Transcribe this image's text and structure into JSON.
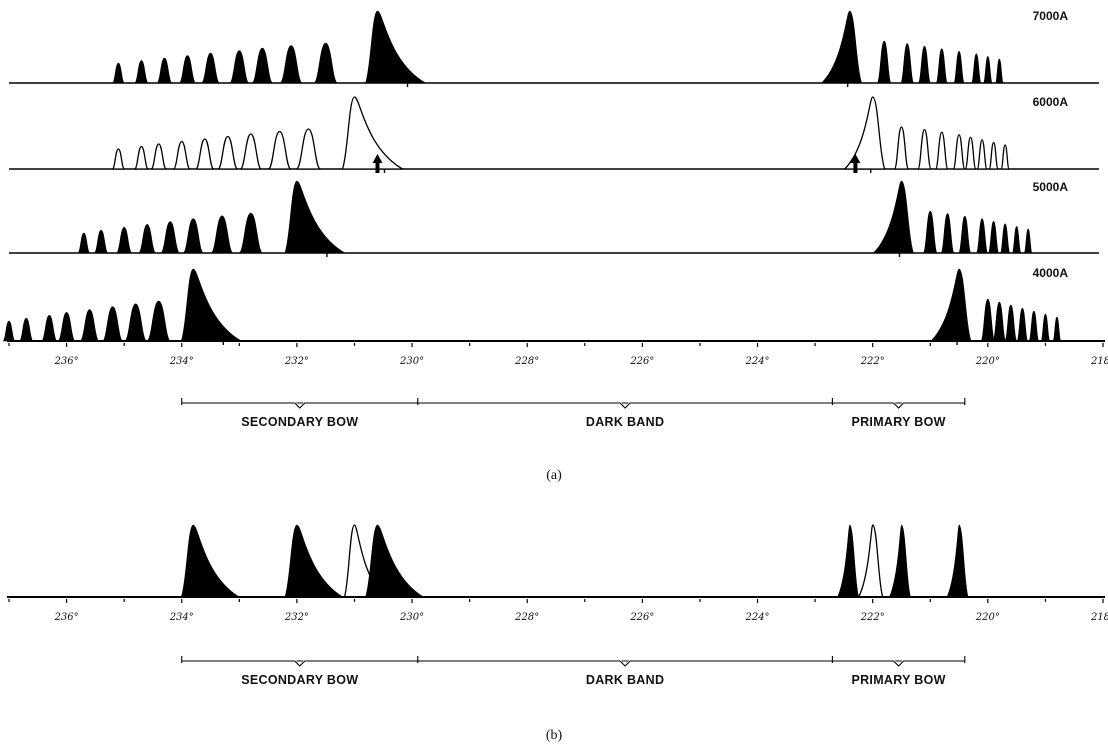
{
  "panel_a": {
    "caption": "(a)",
    "axis": {
      "ticks": [
        {
          "deg": 236,
          "label": "236°"
        },
        {
          "deg": 234,
          "label": "234°"
        },
        {
          "deg": 232,
          "label": "232°"
        },
        {
          "deg": 230,
          "label": "230°"
        },
        {
          "deg": 228,
          "label": "228°"
        },
        {
          "deg": 226,
          "label": "226°"
        },
        {
          "deg": 224,
          "label": "224°"
        },
        {
          "deg": 222,
          "label": "222°"
        },
        {
          "deg": 220,
          "label": "220°"
        },
        {
          "deg": 218,
          "label": "218°"
        }
      ]
    },
    "rows": [
      {
        "wavelength": "7000A",
        "filled": true,
        "secondary_peaks": [
          235.1,
          234.7,
          234.3,
          233.9,
          233.5,
          233.0,
          232.6,
          232.1,
          231.5
        ],
        "secondary_main": 230.6,
        "primary_main": 222.4,
        "primary_peaks": [
          221.8,
          221.4,
          221.1,
          220.8,
          220.5,
          220.2,
          220.0,
          219.8
        ],
        "arrows": []
      },
      {
        "wavelength": "6000A",
        "filled": false,
        "secondary_peaks": [
          235.1,
          234.7,
          234.4,
          234.0,
          233.6,
          233.2,
          232.8,
          232.3,
          231.8
        ],
        "secondary_main": 231.0,
        "primary_main": 222.0,
        "primary_peaks": [
          221.5,
          221.1,
          220.8,
          220.5,
          220.3,
          220.1,
          219.9,
          219.7
        ],
        "arrows": [
          230.6,
          222.3
        ]
      },
      {
        "wavelength": "5000A",
        "filled": true,
        "secondary_peaks": [
          235.7,
          235.4,
          235.0,
          234.6,
          234.2,
          233.8,
          233.3,
          232.8
        ],
        "secondary_main": 232.0,
        "primary_main": 221.5,
        "primary_peaks": [
          221.0,
          220.7,
          220.4,
          220.1,
          219.9,
          219.7,
          219.5,
          219.3
        ],
        "arrows": []
      },
      {
        "wavelength": "4000A",
        "filled": true,
        "secondary_peaks": [
          237.0,
          236.7,
          236.3,
          236.0,
          235.6,
          235.2,
          234.8,
          234.4
        ],
        "secondary_main": 233.8,
        "primary_main": 220.5,
        "primary_peaks": [
          220.0,
          219.8,
          219.6,
          219.4,
          219.2,
          219.0,
          218.8
        ],
        "arrows": []
      }
    ],
    "regions": [
      {
        "label": "SECONDARY BOW",
        "from": 234.0,
        "to": 229.9
      },
      {
        "label": "DARK BAND",
        "from": 229.9,
        "to": 222.7
      },
      {
        "label": "PRIMARY BOW",
        "from": 222.7,
        "to": 220.4
      }
    ]
  },
  "panel_b": {
    "caption": "(b)",
    "axis": {
      "ticks": [
        {
          "deg": 236,
          "label": "236°"
        },
        {
          "deg": 234,
          "label": "234°"
        },
        {
          "deg": 232,
          "label": "232°"
        },
        {
          "deg": 230,
          "label": "230°"
        },
        {
          "deg": 228,
          "label": "228°"
        },
        {
          "deg": 226,
          "label": "226°"
        },
        {
          "deg": 224,
          "label": "224°"
        },
        {
          "deg": 222,
          "label": "222°"
        },
        {
          "deg": 220,
          "label": "220°"
        },
        {
          "deg": 218,
          "label": "218°"
        }
      ]
    },
    "peaks": [
      {
        "deg": 233.8,
        "filled": true
      },
      {
        "deg": 232.0,
        "filled": true
      },
      {
        "deg": 231.0,
        "filled": false
      },
      {
        "deg": 230.6,
        "filled": true
      },
      {
        "deg": 222.4,
        "filled": true
      },
      {
        "deg": 222.0,
        "filled": false
      },
      {
        "deg": 221.5,
        "filled": true
      },
      {
        "deg": 220.5,
        "filled": true
      }
    ],
    "regions": [
      {
        "label": "SECONDARY BOW",
        "from": 234.0,
        "to": 229.9
      },
      {
        "label": "DARK BAND",
        "from": 229.9,
        "to": 222.7
      },
      {
        "label": "PRIMARY BOW",
        "from": 222.7,
        "to": 220.4
      }
    ]
  }
}
